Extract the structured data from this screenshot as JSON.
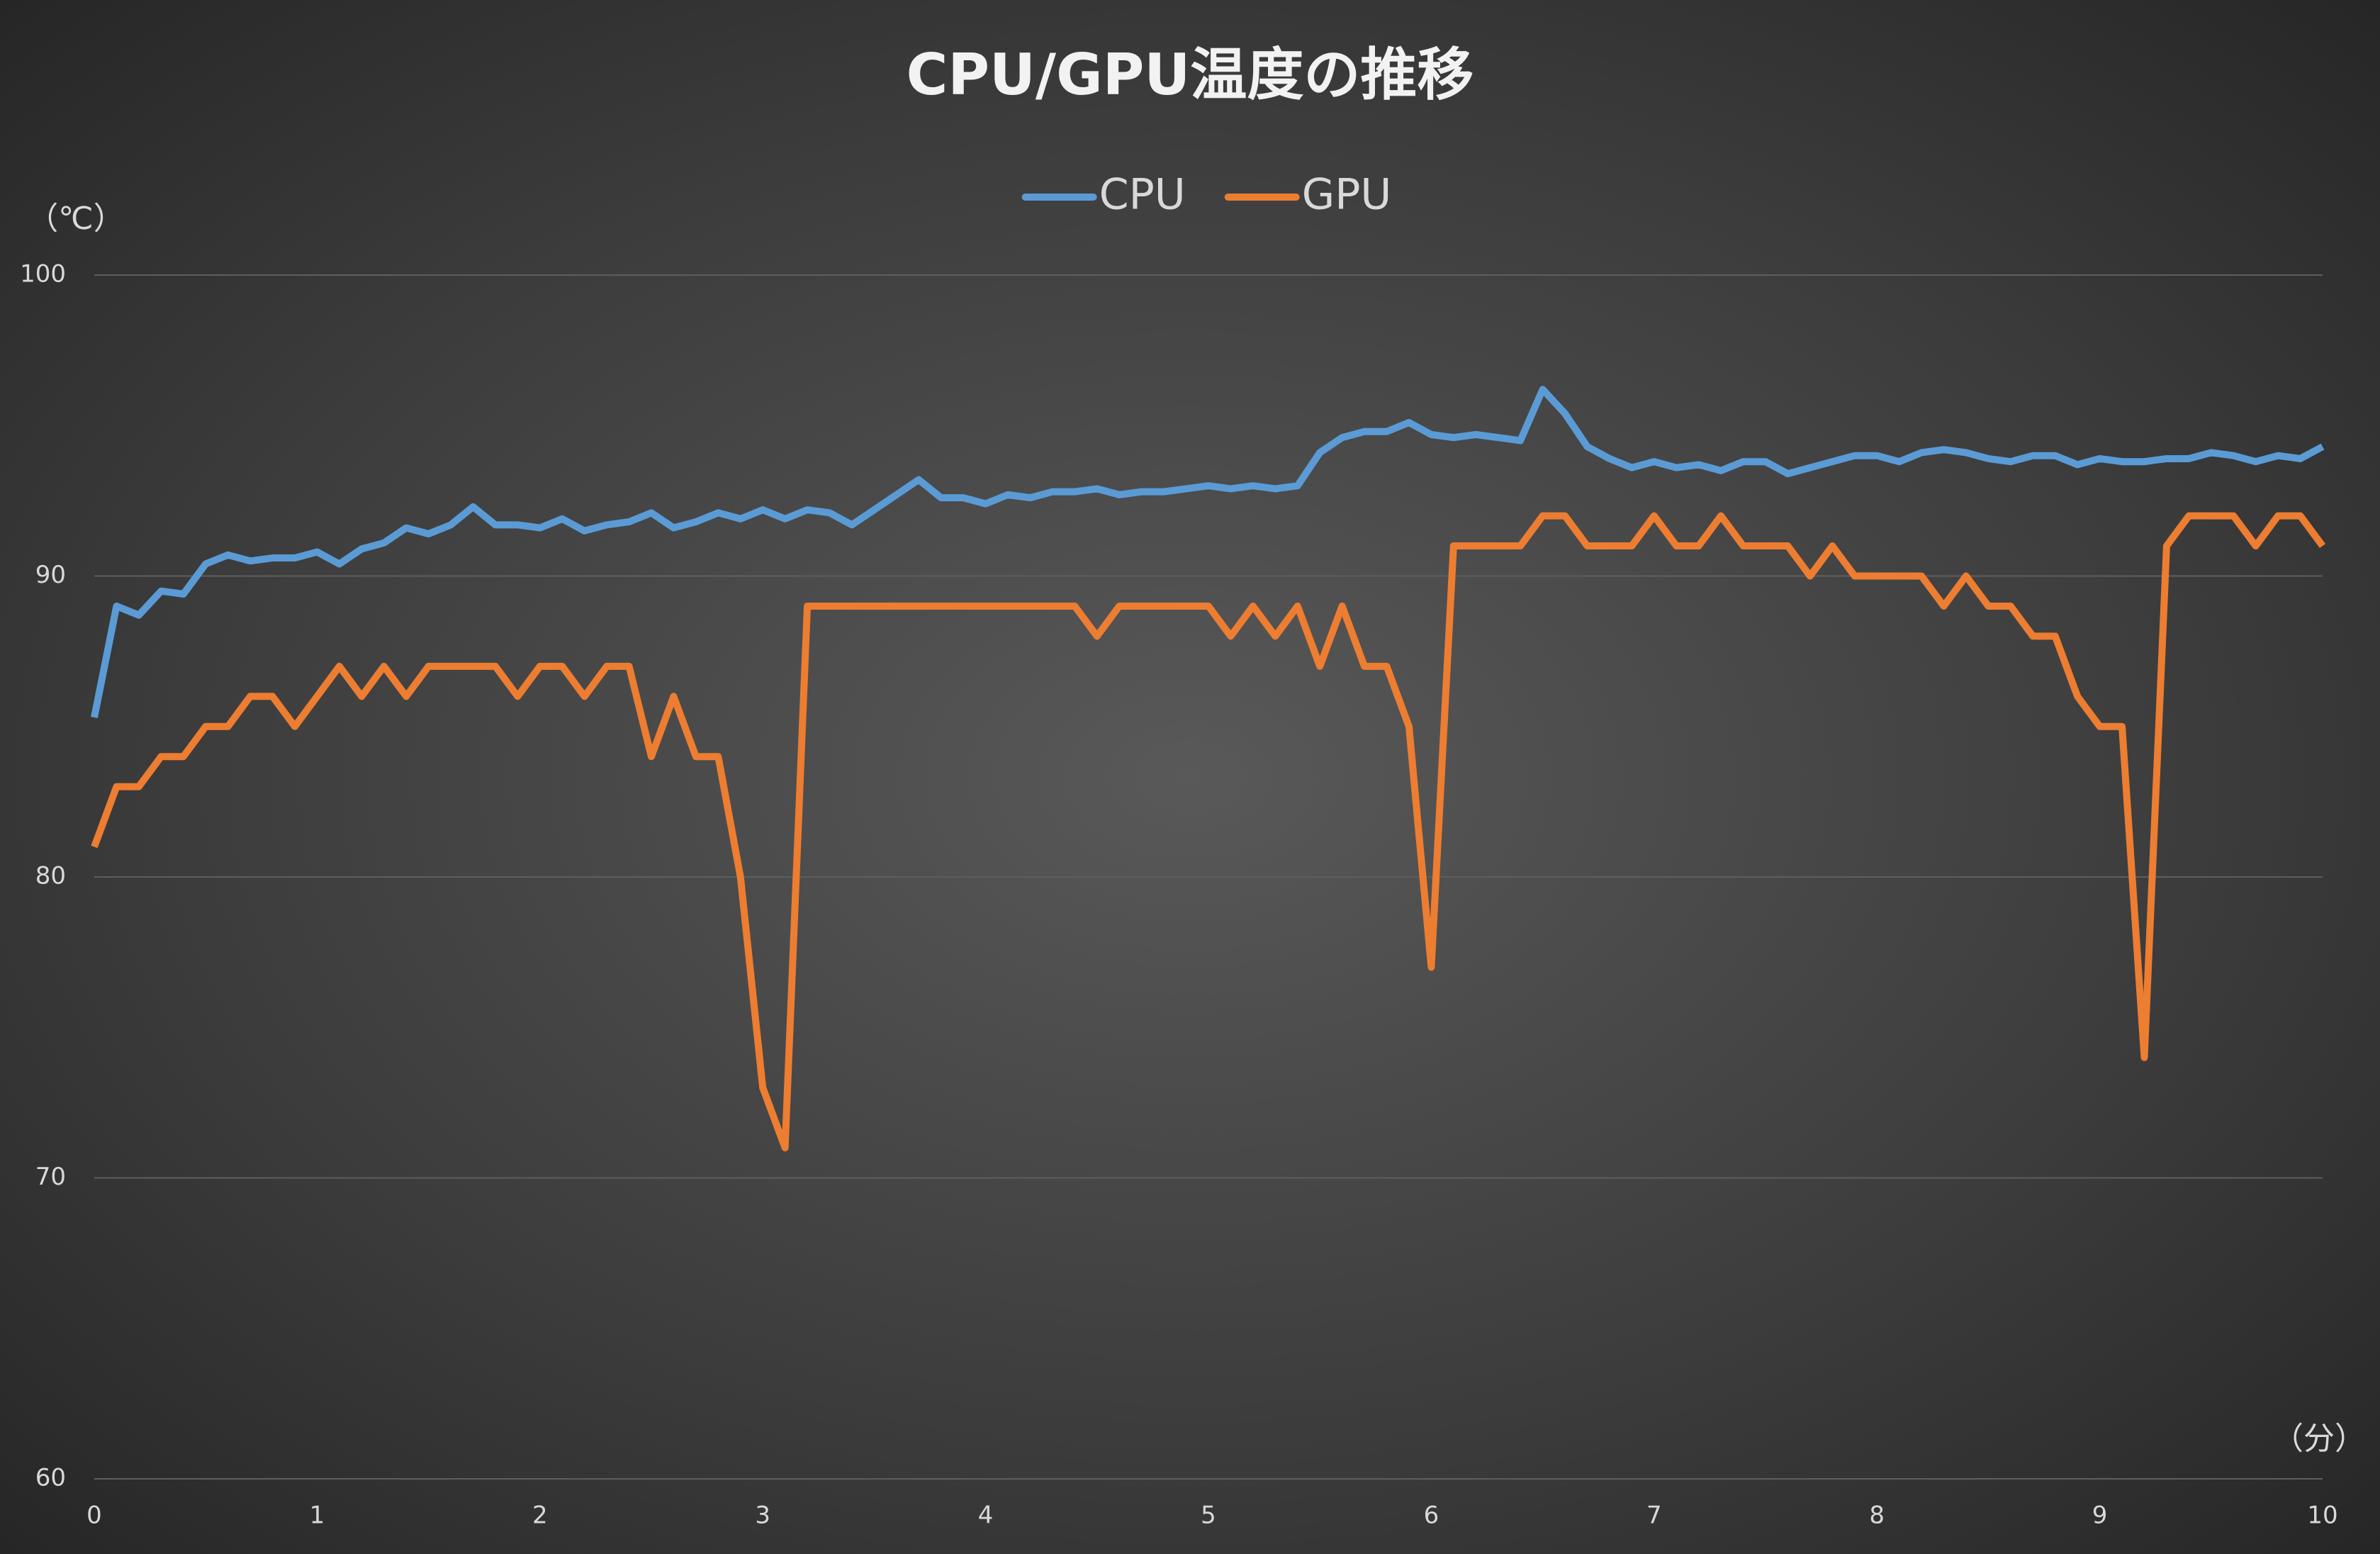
{
  "chart_data": {
    "type": "line",
    "title": "CPU/GPU温度の推移",
    "y_label": "（℃）",
    "x_label": "（分）",
    "xlim": [
      0,
      10
    ],
    "xticks": [
      0,
      1,
      2,
      3,
      4,
      5,
      6,
      7,
      8,
      9,
      10
    ],
    "ylim": [
      60,
      100
    ],
    "yticks": [
      60,
      70,
      80,
      90,
      100
    ],
    "grid": true,
    "legend": "top",
    "x": [
      0,
      0.1,
      0.2,
      0.3,
      0.4,
      0.5,
      0.6,
      0.7,
      0.8,
      0.9,
      1,
      1.1,
      1.2,
      1.3,
      1.4,
      1.5,
      1.6,
      1.7,
      1.8,
      1.9,
      2,
      2.1,
      2.2,
      2.3,
      2.4,
      2.5,
      2.6,
      2.7,
      2.8,
      2.9,
      3,
      3.1,
      3.2,
      3.3,
      3.4,
      3.5,
      3.6,
      3.7,
      3.8,
      3.9,
      4,
      4.1,
      4.2,
      4.3,
      4.4,
      4.5,
      4.6,
      4.7,
      4.8,
      4.9,
      5,
      5.1,
      5.2,
      5.3,
      5.4,
      5.5,
      5.6,
      5.7,
      5.8,
      5.9,
      6,
      6.1,
      6.2,
      6.3,
      6.4,
      6.5,
      6.6,
      6.7,
      6.8,
      6.9,
      7,
      7.1,
      7.2,
      7.3,
      7.4,
      7.5,
      7.6,
      7.7,
      7.8,
      7.9,
      8,
      8.1,
      8.2,
      8.3,
      8.4,
      8.5,
      8.6,
      8.7,
      8.8,
      8.9,
      9,
      9.1,
      9.2,
      9.3,
      9.4,
      9.5,
      9.6,
      9.7,
      9.8,
      9.9,
      10
    ],
    "series": [
      {
        "name": "CPU",
        "color": "#5b9bd5",
        "values": [
          85.3,
          89,
          88.7,
          89.5,
          89.4,
          90.4,
          90.7,
          90.5,
          90.6,
          90.6,
          90.8,
          90.4,
          90.9,
          91.1,
          91.6,
          91.4,
          91.7,
          92.3,
          91.7,
          91.7,
          91.6,
          91.9,
          91.5,
          91.7,
          91.8,
          92.1,
          91.6,
          91.8,
          92.1,
          91.9,
          92.2,
          91.9,
          92.2,
          92.1,
          91.7,
          92.2,
          92.7,
          93.2,
          92.6,
          92.6,
          92.4,
          92.7,
          92.6,
          92.8,
          92.8,
          92.9,
          92.7,
          92.8,
          92.8,
          92.9,
          93,
          92.9,
          93,
          92.9,
          93,
          94.1,
          94.6,
          94.8,
          94.8,
          95.1,
          94.7,
          94.6,
          94.7,
          94.6,
          94.5,
          96.2,
          95.4,
          94.3,
          93.9,
          93.6,
          93.8,
          93.6,
          93.7,
          93.5,
          93.8,
          93.8,
          93.4,
          93.6,
          93.8,
          94,
          94,
          93.8,
          94.1,
          94.2,
          94.1,
          93.9,
          93.8,
          94,
          94,
          93.7,
          93.9,
          93.8,
          93.8,
          93.9,
          93.9,
          94.1,
          94,
          93.8,
          94,
          93.9,
          94.3
        ]
      },
      {
        "name": "GPU",
        "color": "#ed7d31",
        "values": [
          81,
          83,
          83,
          84,
          84,
          85,
          85,
          86,
          86,
          85,
          86,
          87,
          86,
          87,
          86,
          87,
          87,
          87,
          87,
          86,
          87,
          87,
          86,
          87,
          87,
          84,
          86,
          84,
          84,
          80,
          73,
          71,
          89,
          89,
          89,
          89,
          89,
          89,
          89,
          89,
          89,
          89,
          89,
          89,
          89,
          88,
          89,
          89,
          89,
          89,
          89,
          88,
          89,
          88,
          89,
          87,
          89,
          87,
          87,
          85,
          77,
          91,
          91,
          91,
          91,
          92,
          92,
          91,
          91,
          91,
          92,
          91,
          91,
          92,
          91,
          91,
          91,
          90,
          91,
          90,
          90,
          90,
          90,
          89,
          90,
          89,
          89,
          88,
          88,
          86,
          85,
          85,
          74,
          91,
          92,
          92,
          92,
          91,
          92,
          92,
          91
        ]
      }
    ]
  }
}
